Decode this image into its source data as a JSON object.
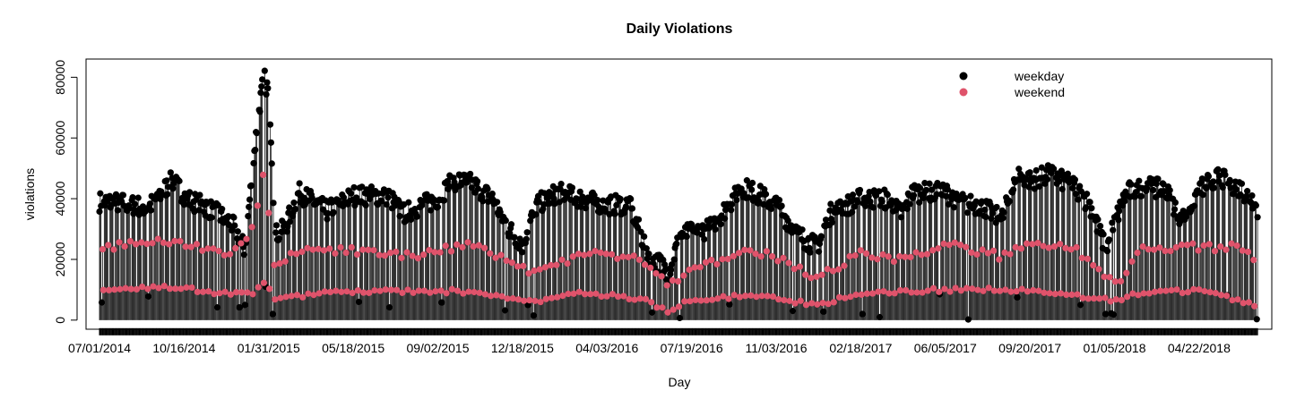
{
  "chart_data": {
    "type": "scatter",
    "title": "Daily Violations",
    "xlabel": "Day",
    "ylabel": "violations",
    "x_tick_labels": [
      "07/01/2014",
      "10/16/2014",
      "01/31/2015",
      "05/18/2015",
      "09/02/2015",
      "12/18/2015",
      "04/03/2016",
      "07/19/2016",
      "11/03/2016",
      "02/18/2017",
      "06/05/2017",
      "09/20/2017",
      "01/05/2018",
      "04/22/2018"
    ],
    "y_ticks": [
      0,
      20000,
      40000,
      60000,
      80000
    ],
    "ylim": [
      -3000,
      86000
    ],
    "xlim": [
      "2014-06-14",
      "2018-07-23"
    ],
    "x_start": "2014-07-01",
    "x_end": "2018-07-05",
    "grid": false,
    "legend_position": "top-right",
    "style": "points with vertical drop lines to zero",
    "legend": [
      {
        "name": "weekday",
        "color": "#000000"
      },
      {
        "name": "weekend",
        "color": "#DF536B"
      }
    ],
    "series": [
      {
        "name": "weekday",
        "color": "#000000",
        "anchors": [
          [
            "2014-07-01",
            39000
          ],
          [
            "2014-08-01",
            38500
          ],
          [
            "2014-09-01",
            37000
          ],
          [
            "2014-10-01",
            46000
          ],
          [
            "2014-10-20",
            40000
          ],
          [
            "2014-11-15",
            37000
          ],
          [
            "2014-12-10",
            33000
          ],
          [
            "2014-12-20",
            30000
          ],
          [
            "2015-01-01",
            23000
          ],
          [
            "2015-01-10",
            48000
          ],
          [
            "2015-01-18",
            68000
          ],
          [
            "2015-01-25",
            80000
          ],
          [
            "2015-02-01",
            74000
          ],
          [
            "2015-02-08",
            28000
          ],
          [
            "2015-02-20",
            30000
          ],
          [
            "2015-03-10",
            42000
          ],
          [
            "2015-04-15",
            36000
          ],
          [
            "2015-05-18",
            41000
          ],
          [
            "2015-07-01",
            41000
          ],
          [
            "2015-07-20",
            35000
          ],
          [
            "2015-08-15",
            38000
          ],
          [
            "2015-09-02",
            40000
          ],
          [
            "2015-09-20",
            46000
          ],
          [
            "2015-10-15",
            45000
          ],
          [
            "2015-11-10",
            40000
          ],
          [
            "2015-12-01",
            30000
          ],
          [
            "2015-12-18",
            25000
          ],
          [
            "2016-01-05",
            38000
          ],
          [
            "2016-02-01",
            42000
          ],
          [
            "2016-03-01",
            40000
          ],
          [
            "2016-04-03",
            38000
          ],
          [
            "2016-05-01",
            38000
          ],
          [
            "2016-05-25",
            22000
          ],
          [
            "2016-06-20",
            16000
          ],
          [
            "2016-07-05",
            28000
          ],
          [
            "2016-08-10",
            30000
          ],
          [
            "2016-09-01",
            37000
          ],
          [
            "2016-09-20",
            44000
          ],
          [
            "2016-10-15",
            41000
          ],
          [
            "2016-11-03",
            38000
          ],
          [
            "2016-12-01",
            28000
          ],
          [
            "2016-12-25",
            24000
          ],
          [
            "2017-01-10",
            35000
          ],
          [
            "2017-02-18",
            40000
          ],
          [
            "2017-03-20",
            40000
          ],
          [
            "2017-04-10",
            35000
          ],
          [
            "2017-04-25",
            42000
          ],
          [
            "2017-06-05",
            42000
          ],
          [
            "2017-07-01",
            38000
          ],
          [
            "2017-07-20",
            38000
          ],
          [
            "2017-08-15",
            33000
          ],
          [
            "2017-09-05",
            48000
          ],
          [
            "2017-09-20",
            46000
          ],
          [
            "2017-10-15",
            48000
          ],
          [
            "2017-11-15",
            44000
          ],
          [
            "2017-12-05",
            38000
          ],
          [
            "2017-12-25",
            23000
          ],
          [
            "2018-01-05",
            32000
          ],
          [
            "2018-01-20",
            42000
          ],
          [
            "2018-02-10",
            44000
          ],
          [
            "2018-03-10",
            43000
          ],
          [
            "2018-04-01",
            33000
          ],
          [
            "2018-04-22",
            43000
          ],
          [
            "2018-05-15",
            47000
          ],
          [
            "2018-06-10",
            44000
          ],
          [
            "2018-06-28",
            40000
          ],
          [
            "2018-07-05",
            36000
          ]
        ],
        "outliers": [
          [
            "2014-07-04",
            5800
          ],
          [
            "2014-09-01",
            7800
          ],
          [
            "2014-11-27",
            4200
          ],
          [
            "2014-12-25",
            4200
          ],
          [
            "2015-01-01",
            5000
          ],
          [
            "2015-01-27",
            11000
          ],
          [
            "2015-02-05",
            2000
          ],
          [
            "2015-05-25",
            6000
          ],
          [
            "2015-07-03",
            4200
          ],
          [
            "2015-09-07",
            5800
          ],
          [
            "2015-11-26",
            3200
          ],
          [
            "2015-12-25",
            5000
          ],
          [
            "2016-01-01",
            1500
          ],
          [
            "2016-05-30",
            2500
          ],
          [
            "2016-07-04",
            700
          ],
          [
            "2016-09-05",
            5200
          ],
          [
            "2016-11-24",
            3000
          ],
          [
            "2016-12-26",
            5200
          ],
          [
            "2017-01-02",
            2800
          ],
          [
            "2017-02-20",
            2000
          ],
          [
            "2017-03-14",
            1000
          ],
          [
            "2017-05-29",
            8500
          ],
          [
            "2017-07-04",
            200
          ],
          [
            "2017-09-04",
            7500
          ],
          [
            "2017-11-23",
            5000
          ],
          [
            "2017-12-25",
            2000
          ],
          [
            "2018-01-01",
            2200
          ],
          [
            "2018-01-04",
            1800
          ],
          [
            "2018-05-28",
            8200
          ],
          [
            "2018-07-04",
            300
          ]
        ]
      },
      {
        "name": "weekend",
        "color": "#DF536B",
        "saturday_anchors": [
          [
            "2014-07-01",
            24000
          ],
          [
            "2014-10-01",
            26000
          ],
          [
            "2014-12-15",
            21000
          ],
          [
            "2015-01-10",
            30000
          ],
          [
            "2015-01-25",
            48000
          ],
          [
            "2015-02-08",
            17000
          ],
          [
            "2015-03-10",
            23000
          ],
          [
            "2015-05-18",
            23000
          ],
          [
            "2015-08-01",
            21000
          ],
          [
            "2015-09-20",
            24000
          ],
          [
            "2015-10-15",
            25000
          ],
          [
            "2015-12-01",
            19000
          ],
          [
            "2016-01-05",
            15000
          ],
          [
            "2016-03-01",
            22000
          ],
          [
            "2016-05-15",
            20000
          ],
          [
            "2016-06-20",
            12000
          ],
          [
            "2016-07-20",
            16000
          ],
          [
            "2016-09-20",
            23000
          ],
          [
            "2016-11-03",
            21000
          ],
          [
            "2016-12-25",
            14000
          ],
          [
            "2017-02-18",
            22000
          ],
          [
            "2017-04-10",
            20000
          ],
          [
            "2017-06-05",
            25000
          ],
          [
            "2017-08-15",
            21000
          ],
          [
            "2017-09-20",
            25000
          ],
          [
            "2017-11-15",
            24000
          ],
          [
            "2017-12-20",
            16000
          ],
          [
            "2018-01-10",
            11000
          ],
          [
            "2018-02-10",
            24000
          ],
          [
            "2018-04-22",
            24000
          ],
          [
            "2018-06-10",
            24000
          ],
          [
            "2018-07-05",
            20000
          ]
        ],
        "sunday_anchors": [
          [
            "2014-07-01",
            9500
          ],
          [
            "2014-10-01",
            11000
          ],
          [
            "2014-12-15",
            8500
          ],
          [
            "2015-01-10",
            9000
          ],
          [
            "2015-01-25",
            12000
          ],
          [
            "2015-02-08",
            7500
          ],
          [
            "2015-05-18",
            9500
          ],
          [
            "2015-09-20",
            9500
          ],
          [
            "2015-12-01",
            7500
          ],
          [
            "2016-01-05",
            6000
          ],
          [
            "2016-03-01",
            9000
          ],
          [
            "2016-05-15",
            7000
          ],
          [
            "2016-06-20",
            3000
          ],
          [
            "2016-07-20",
            7000
          ],
          [
            "2016-10-15",
            8000
          ],
          [
            "2016-12-25",
            5000
          ],
          [
            "2017-02-18",
            9000
          ],
          [
            "2017-06-05",
            10000
          ],
          [
            "2017-09-20",
            10000
          ],
          [
            "2017-12-20",
            7000
          ],
          [
            "2018-01-10",
            6500
          ],
          [
            "2018-02-10",
            9500
          ],
          [
            "2018-04-22",
            9500
          ],
          [
            "2018-07-05",
            5000
          ]
        ]
      }
    ]
  }
}
